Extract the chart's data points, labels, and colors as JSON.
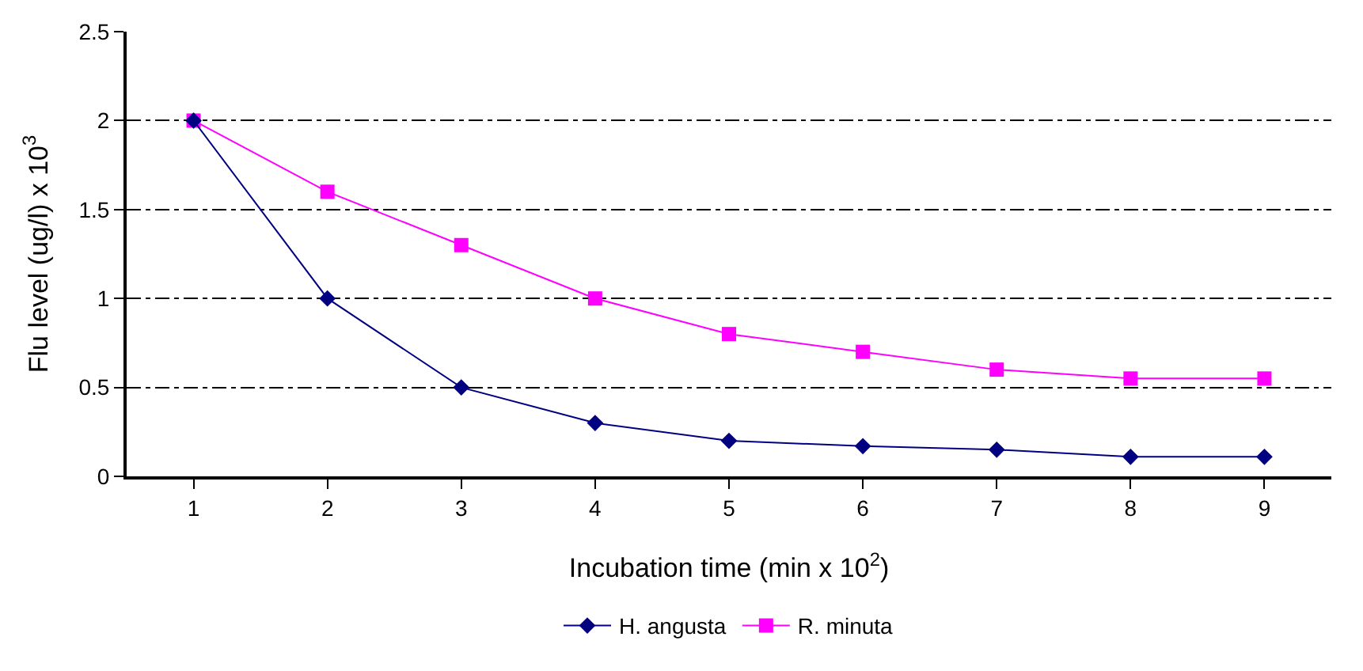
{
  "chart_data": {
    "type": "line",
    "xlabel": "Incubation time (min x 10$^{2}$)",
    "ylabel": "Flu level (ug/l) x 10$^{3}$",
    "categories": [
      "1",
      "2",
      "3",
      "4",
      "5",
      "6",
      "7",
      "8",
      "9"
    ],
    "series": [
      {
        "name": "H. angusta",
        "color": "#000080",
        "marker": "diamond",
        "values": [
          2,
          1,
          0.5,
          0.3,
          0.2,
          0.17,
          0.15,
          0.11,
          0.11
        ]
      },
      {
        "name": "R. minuta",
        "color": "#ff00ff",
        "marker": "square",
        "values": [
          2,
          1.6,
          1.3,
          1.0,
          0.8,
          0.7,
          0.6,
          0.55,
          0.55
        ]
      }
    ],
    "ylim": [
      0,
      2.5
    ],
    "yticks": [
      0,
      0.5,
      1,
      1.5,
      2,
      2.5
    ],
    "grid": "y",
    "legend": "bottom",
    "line_style": "solid"
  }
}
